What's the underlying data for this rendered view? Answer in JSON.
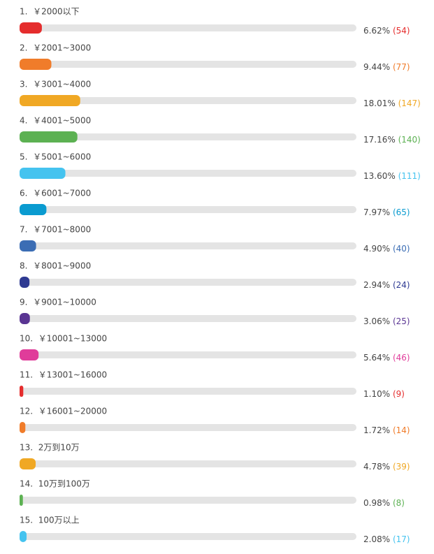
{
  "chart_data": {
    "type": "hbar",
    "categories": [
      "1.  ￥2000以下",
      "2.  ￥2001~3000",
      "3.  ￥3001~4000",
      "4.  ￥4001~5000",
      "5.  ￥5001~6000",
      "6.  ￥6001~7000",
      "7.  ￥7001~8000",
      "8.  ￥8001~9000",
      "9.  ￥9001~10000",
      "10.  ￥10001~13000",
      "11.  ￥13001~16000",
      "12.  ￥16001~20000",
      "13.  2万到10万",
      "14.  10万到100万",
      "15.  100万以上"
    ],
    "values": [
      6.62,
      9.44,
      18.01,
      17.16,
      13.6,
      7.97,
      4.9,
      2.94,
      3.06,
      5.64,
      1.1,
      1.72,
      4.78,
      0.98,
      2.08
    ],
    "value_labels": [
      "6.62%",
      "9.44%",
      "18.01%",
      "17.16%",
      "13.60%",
      "7.97%",
      "4.90%",
      "2.94%",
      "3.06%",
      "5.64%",
      "1.10%",
      "1.72%",
      "4.78%",
      "0.98%",
      "2.08%"
    ],
    "count_labels": [
      "(54)",
      "(77)",
      "(147)",
      "(140)",
      "(111)",
      "(65)",
      "(40)",
      "(24)",
      "(25)",
      "(46)",
      "(9)",
      "(14)",
      "(39)",
      "(8)",
      "(17)"
    ],
    "colors": [
      "#e52d2d",
      "#f07c2a",
      "#f0a824",
      "#5cb152",
      "#45c3ef",
      "#0a9bd0",
      "#3b6db4",
      "#2e3a92",
      "#5a3593",
      "#e03c9a",
      "#e52d2d",
      "#f07c2a",
      "#f0a824",
      "#5cb152",
      "#45c3ef"
    ],
    "xlim": [
      0,
      100
    ]
  }
}
